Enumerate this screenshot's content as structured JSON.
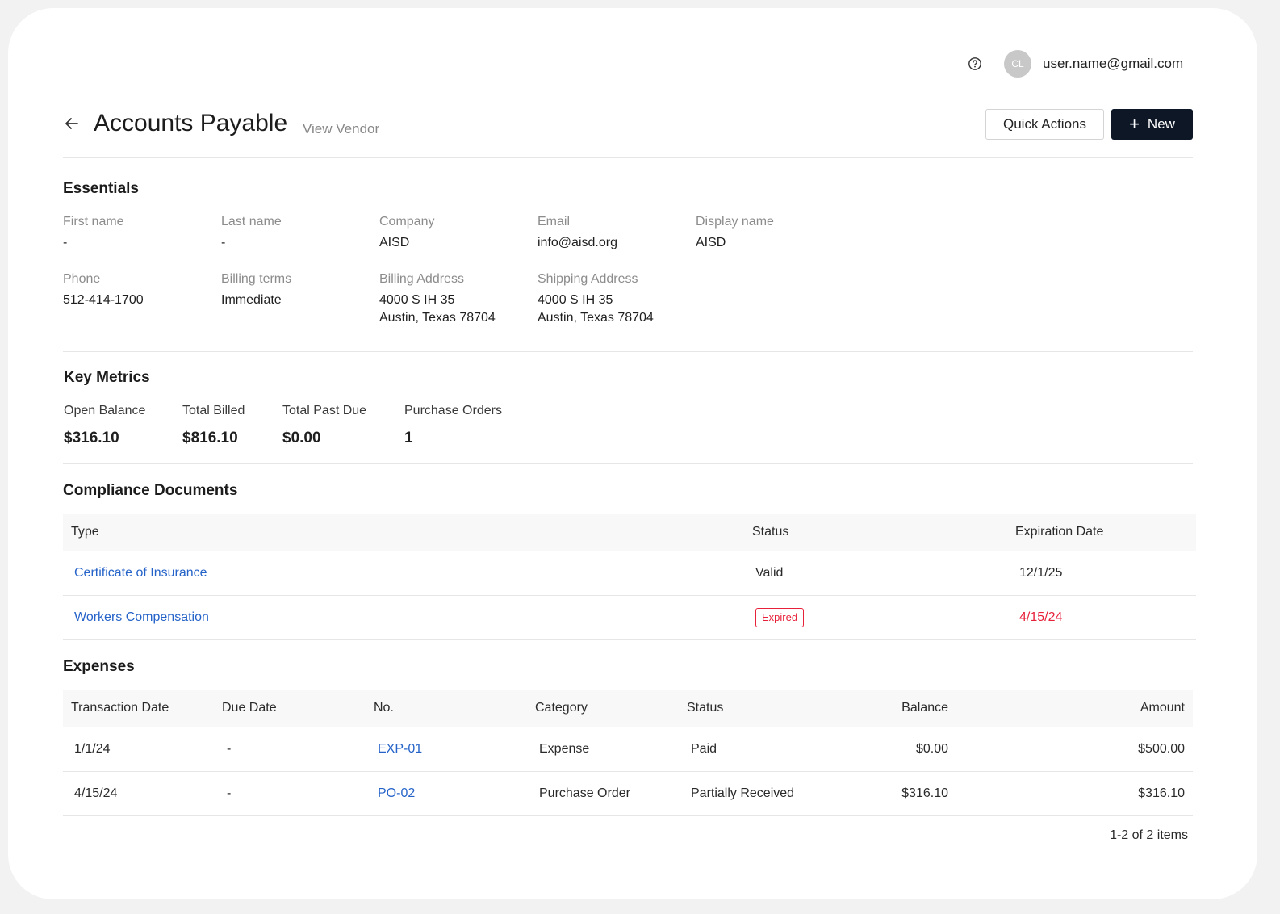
{
  "topbar": {
    "help_icon": "question-circle-icon",
    "avatar_initials": "CL",
    "user_email": "user.name@gmail.com"
  },
  "header": {
    "back_icon": "arrow-left-icon",
    "title": "Accounts Payable",
    "subtitle": "View Vendor",
    "quick_actions_label": "Quick Actions",
    "new_label": "New",
    "new_icon": "plus-icon",
    "new_button_color": "#0d1726"
  },
  "essentials": {
    "title": "Essentials",
    "first_name": {
      "label": "First name",
      "value": "-"
    },
    "last_name": {
      "label": "Last name",
      "value": "-"
    },
    "company": {
      "label": "Company",
      "value": "AISD"
    },
    "email": {
      "label": "Email",
      "value": "info@aisd.org"
    },
    "display_name": {
      "label": "Display name",
      "value": "AISD"
    },
    "phone": {
      "label": "Phone",
      "value": "512-414-1700"
    },
    "billing_terms": {
      "label": "Billing terms",
      "value": "Immediate"
    },
    "billing_address": {
      "label": "Billing Address",
      "line1": "4000 S IH 35",
      "line2": "Austin, Texas 78704"
    },
    "shipping_address": {
      "label": "Shipping Address",
      "line1": "4000 S IH 35",
      "line2": "Austin, Texas 78704"
    }
  },
  "metrics": {
    "title": "Key Metrics",
    "open_balance": {
      "label": "Open Balance",
      "value": "$316.10"
    },
    "total_billed": {
      "label": "Total Billed",
      "value": "$816.10"
    },
    "total_past_due": {
      "label": "Total Past Due",
      "value": "$0.00"
    },
    "purchase_orders": {
      "label": "Purchase Orders",
      "value": "1"
    }
  },
  "compliance": {
    "title": "Compliance Documents",
    "columns": {
      "type": "Type",
      "status": "Status",
      "expiration": "Expiration Date"
    },
    "rows": [
      {
        "type": "Certificate of Insurance",
        "status": "Valid",
        "expiration": "12/1/25"
      },
      {
        "type": "Workers Compensation",
        "status": "Expired",
        "expiration": "4/15/24"
      }
    ],
    "expired_color": "#e8213b",
    "link_color": "#2563c9"
  },
  "expenses": {
    "title": "Expenses",
    "columns": {
      "transaction_date": "Transaction Date",
      "due_date": "Due Date",
      "no": "No.",
      "category": "Category",
      "status": "Status",
      "balance": "Balance",
      "amount": "Amount"
    },
    "rows": [
      {
        "transaction_date": "1/1/24",
        "due_date": "-",
        "no": "EXP-01",
        "category": "Expense",
        "status": "Paid",
        "balance": "$0.00",
        "amount": "$500.00"
      },
      {
        "transaction_date": "4/15/24",
        "due_date": "-",
        "no": "PO-02",
        "category": "Purchase Order",
        "status": "Partially Received",
        "balance": "$316.10",
        "amount": "$316.10"
      }
    ],
    "pager": "1-2 of 2 items"
  }
}
